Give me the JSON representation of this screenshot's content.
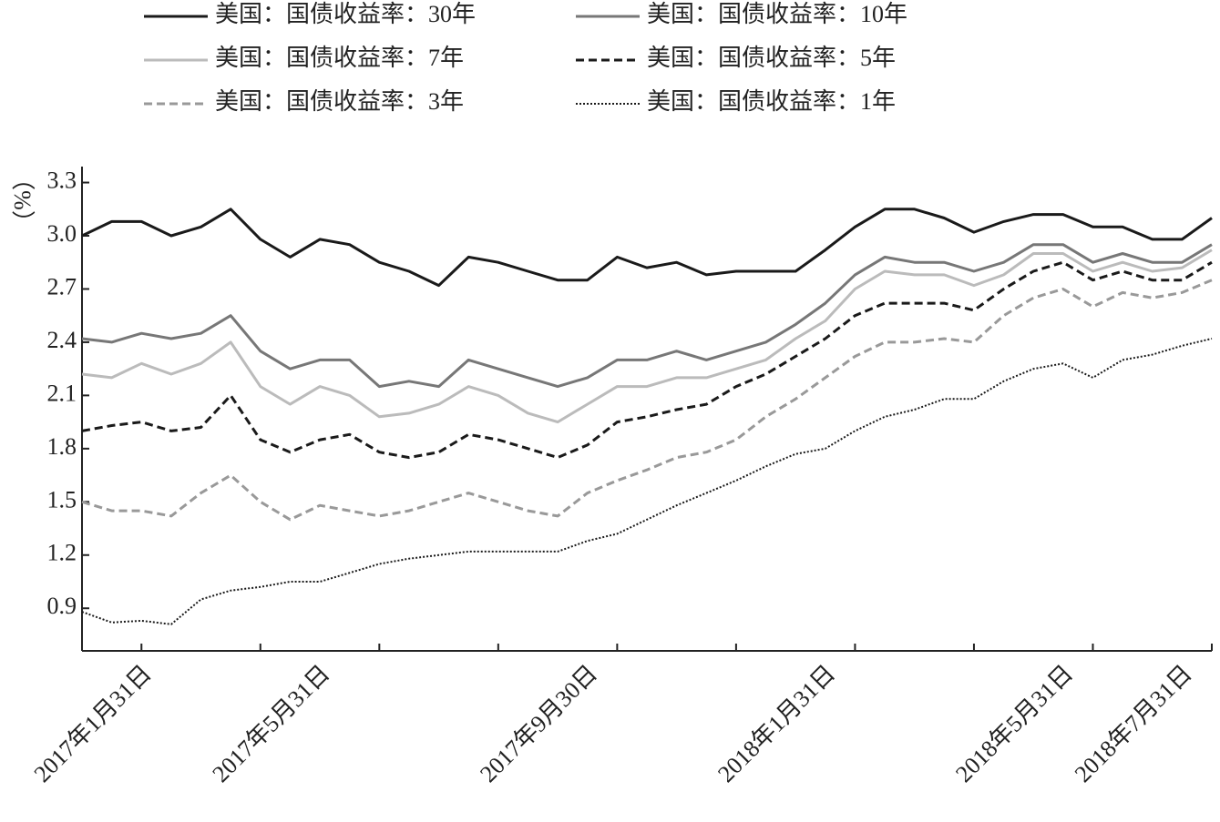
{
  "chart_data": {
    "type": "line",
    "y_label": "（%）",
    "categories": [
      null,
      null,
      "2017年1月31日",
      null,
      null,
      null,
      null,
      null,
      "2017年5月31日",
      null,
      null,
      null,
      null,
      null,
      null,
      null,
      null,
      "2017年9月30日",
      null,
      null,
      null,
      null,
      null,
      null,
      null,
      "2018年1月31日",
      null,
      null,
      null,
      null,
      null,
      null,
      null,
      "2018年5月31日",
      null,
      null,
      null,
      "2018年7月31日",
      null
    ],
    "ylim": [
      0.66,
      3.39
    ],
    "yticks": [
      0.9,
      1.2,
      1.5,
      1.8,
      2.1,
      2.4,
      2.7,
      {
        "value": 3,
        "label": "3.0"
      },
      3.3
    ],
    "series": [
      {
        "name": "美国：国债收益率：30年",
        "color": "#1a1a1a",
        "dash": "solid",
        "values": [
          3.0,
          3.08,
          3.08,
          3.0,
          3.05,
          3.15,
          2.98,
          2.88,
          2.98,
          2.95,
          2.85,
          2.8,
          2.72,
          2.88,
          2.85,
          2.8,
          2.75,
          2.75,
          2.88,
          2.82,
          2.85,
          2.78,
          2.8,
          2.8,
          2.8,
          2.92,
          3.05,
          3.15,
          3.15,
          3.1,
          3.02,
          3.08,
          3.12,
          3.12,
          3.05,
          3.05,
          2.98,
          2.98,
          3.1
        ]
      },
      {
        "name": "美国：国债收益率：10年",
        "color": "#777777",
        "dash": "solid",
        "values": [
          2.42,
          2.4,
          2.45,
          2.42,
          2.45,
          2.55,
          2.35,
          2.25,
          2.3,
          2.3,
          2.15,
          2.18,
          2.15,
          2.3,
          2.25,
          2.2,
          2.15,
          2.2,
          2.3,
          2.3,
          2.35,
          2.3,
          2.35,
          2.4,
          2.5,
          2.62,
          2.78,
          2.88,
          2.85,
          2.85,
          2.8,
          2.85,
          2.95,
          2.95,
          2.85,
          2.9,
          2.85,
          2.85,
          2.95
        ]
      },
      {
        "name": "美国：国债收益率：7年",
        "color": "#bbbbbb",
        "dash": "solid",
        "values": [
          2.22,
          2.2,
          2.28,
          2.22,
          2.28,
          2.4,
          2.15,
          2.05,
          2.15,
          2.1,
          1.98,
          2.0,
          2.05,
          2.15,
          2.1,
          2.0,
          1.95,
          2.05,
          2.15,
          2.15,
          2.2,
          2.2,
          2.25,
          2.3,
          2.42,
          2.52,
          2.7,
          2.8,
          2.78,
          2.78,
          2.72,
          2.78,
          2.9,
          2.9,
          2.8,
          2.85,
          2.8,
          2.82,
          2.92
        ]
      },
      {
        "name": "美国：国债收益率：5年",
        "color": "#1a1a1a",
        "dash": "dashed",
        "values": [
          1.9,
          1.93,
          1.95,
          1.9,
          1.92,
          2.1,
          1.85,
          1.78,
          1.85,
          1.88,
          1.78,
          1.75,
          1.78,
          1.88,
          1.85,
          1.8,
          1.75,
          1.82,
          1.95,
          1.98,
          2.02,
          2.05,
          2.15,
          2.22,
          2.32,
          2.42,
          2.55,
          2.62,
          2.62,
          2.62,
          2.58,
          2.7,
          2.8,
          2.85,
          2.75,
          2.8,
          2.75,
          2.75,
          2.85
        ]
      },
      {
        "name": "美国：国债收益率：3年",
        "color": "#999999",
        "dash": "dashed",
        "values": [
          1.5,
          1.45,
          1.45,
          1.42,
          1.55,
          1.65,
          1.5,
          1.4,
          1.48,
          1.45,
          1.42,
          1.45,
          1.5,
          1.55,
          1.5,
          1.45,
          1.42,
          1.55,
          1.62,
          1.68,
          1.75,
          1.78,
          1.85,
          1.98,
          2.08,
          2.2,
          2.32,
          2.4,
          2.4,
          2.42,
          2.4,
          2.55,
          2.65,
          2.7,
          2.6,
          2.68,
          2.65,
          2.68,
          2.75
        ]
      },
      {
        "name": "美国：国债收益率：1年",
        "color": "#1a1a1a",
        "dash": "dotted",
        "values": [
          0.88,
          0.82,
          0.83,
          0.81,
          0.95,
          1.0,
          1.02,
          1.05,
          1.05,
          1.1,
          1.15,
          1.18,
          1.2,
          1.22,
          1.22,
          1.22,
          1.22,
          1.28,
          1.32,
          1.4,
          1.48,
          1.55,
          1.62,
          1.7,
          1.77,
          1.8,
          1.9,
          1.98,
          2.02,
          2.08,
          2.08,
          2.18,
          2.25,
          2.28,
          2.2,
          2.3,
          2.33,
          2.38,
          2.42
        ]
      }
    ]
  }
}
